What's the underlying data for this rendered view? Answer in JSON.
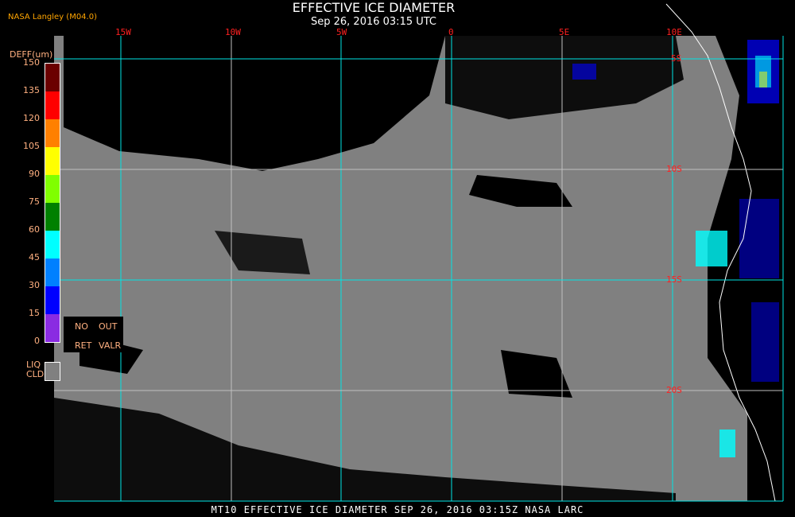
{
  "header": {
    "title": "EFFECTIVE ICE DIAMETER",
    "subtitle": "Sep 26, 2016 03:15 UTC",
    "org": "NASA Langley (M04.0)"
  },
  "footer": "MT10  EFFECTIVE ICE DIAMETER  SEP 26, 2016 03:15Z  NASA LARC",
  "legend": {
    "title": "DEFF(um)",
    "ticks": [
      "150",
      "135",
      "120",
      "105",
      "90",
      "75",
      "60",
      "45",
      "30",
      "15",
      "0"
    ],
    "colors": [
      "#6b0000",
      "#ff0000",
      "#ff8000",
      "#ffff00",
      "#80ff00",
      "#008000",
      "#00ffff",
      "#0080ff",
      "#0000ff",
      "#8a2be2"
    ],
    "no_retrieval": [
      "NO",
      "RET"
    ],
    "out_of_range": [
      "OUT",
      "VALR"
    ],
    "liquid_cloud": [
      "LIQ",
      "CLD"
    ],
    "liquid_cloud_color": "#808080"
  },
  "map": {
    "longitude_labels": [
      "15W",
      "10W",
      "5W",
      "0",
      "5E",
      "10E"
    ],
    "latitude_labels": [
      "5S",
      "10S",
      "15S",
      "20S"
    ],
    "grid_color_major": "#00e5e5",
    "grid_color_minor": "#c0c0c0",
    "background_color": "#808080"
  }
}
